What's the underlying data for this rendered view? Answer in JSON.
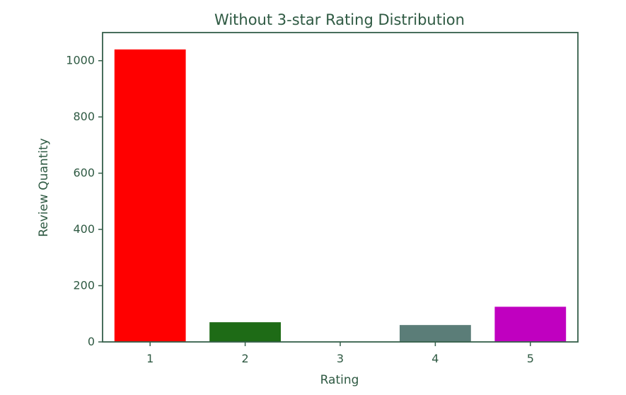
{
  "colors": {
    "text": "#2f5a43",
    "axis": "#355f4a"
  },
  "chart_data": {
    "type": "bar",
    "title": "Without 3-star Rating Distribution",
    "xlabel": "Rating",
    "ylabel": "Review Quantity",
    "categories": [
      "1",
      "2",
      "3",
      "4",
      "5"
    ],
    "values": [
      1040,
      70,
      0,
      60,
      125
    ],
    "bar_colors": [
      "#ff0000",
      "#1e6b16",
      "#ffffff",
      "#5b7d78",
      "#c000c0"
    ],
    "ylim": [
      0,
      1100
    ],
    "yticks": [
      "0",
      "200",
      "400",
      "600",
      "800",
      "1000"
    ],
    "ytick_values": [
      0,
      200,
      400,
      600,
      800,
      1000
    ],
    "grid": false
  }
}
